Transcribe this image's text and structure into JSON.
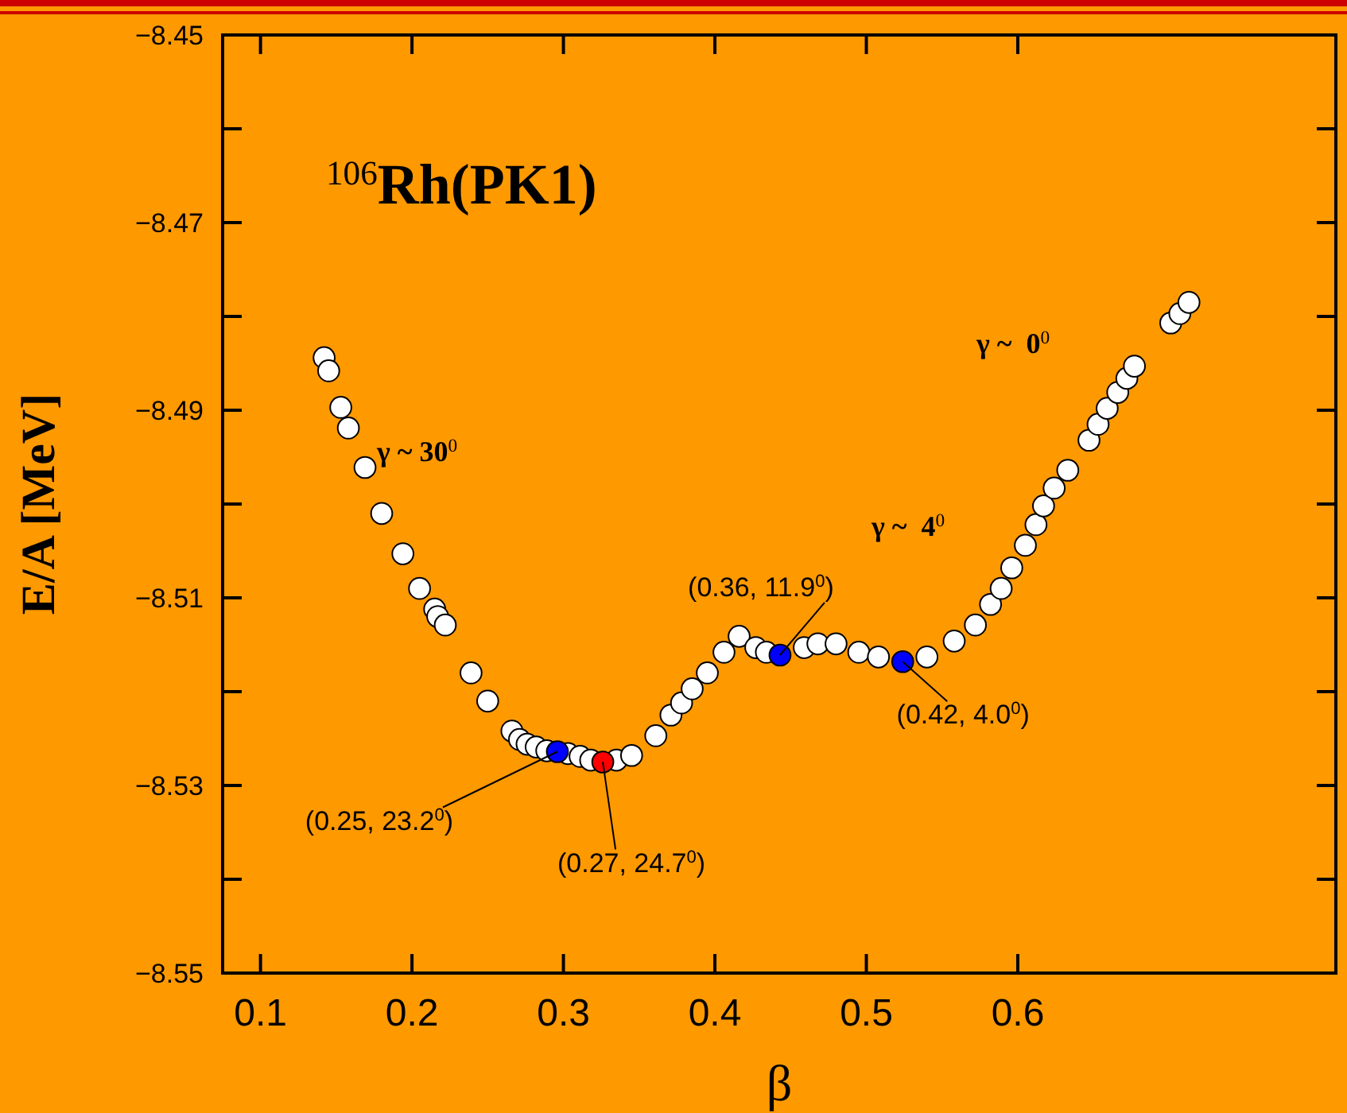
{
  "chart_data": {
    "type": "scatter",
    "title": "$^{106}$Rh(PK1)",
    "xlabel": "β",
    "ylabel": "E/A [MeV]",
    "xlim": [
      0.075,
      0.81
    ],
    "xticks": [
      0.1,
      0.2,
      0.3,
      0.4,
      0.5,
      0.6
    ],
    "ylim": [
      -8.55,
      -8.45
    ],
    "yticks": [
      {
        "value": -8.55,
        "label": "−8.55"
      },
      {
        "value": -8.54,
        "label": null
      },
      {
        "value": -8.53,
        "label": "−8.53"
      },
      {
        "value": -8.52,
        "label": null
      },
      {
        "value": -8.51,
        "label": "−8.51"
      },
      {
        "value": -8.5,
        "label": null
      },
      {
        "value": -8.49,
        "label": "−8.49"
      },
      {
        "value": -8.48,
        "label": null
      },
      {
        "value": -8.47,
        "label": "−8.47"
      },
      {
        "value": -8.46,
        "label": null
      },
      {
        "value": -8.45,
        "label": "−8.45"
      }
    ],
    "grid": false,
    "marker": "circle",
    "series": [
      {
        "color": "#ffffff",
        "x": [
          0.142,
          0.145,
          0.153,
          0.158,
          0.169,
          0.18,
          0.194,
          0.205,
          0.215,
          0.217,
          0.222,
          0.239,
          0.25,
          0.266,
          0.271,
          0.276,
          0.282,
          0.289,
          0.303,
          0.311,
          0.318,
          0.335,
          0.345,
          0.361,
          0.371,
          0.378,
          0.385,
          0.395,
          0.406,
          0.416,
          0.427,
          0.434,
          0.459,
          0.468,
          0.48,
          0.495,
          0.508,
          0.54,
          0.558,
          0.572,
          0.582,
          0.589,
          0.596,
          0.605,
          0.612,
          0.617,
          0.624,
          0.633,
          0.647,
          0.653,
          0.659,
          0.666,
          0.672,
          0.677,
          0.701,
          0.707,
          0.713
        ],
        "values": [
          -8.4844,
          -8.4858,
          -8.4897,
          -8.4919,
          -8.4961,
          -8.501,
          -8.5053,
          -8.509,
          -8.5112,
          -8.512,
          -8.5129,
          -8.518,
          -8.521,
          -8.5242,
          -8.5251,
          -8.5256,
          -8.5259,
          -8.5263,
          -8.5266,
          -8.5269,
          -8.5273,
          -8.5273,
          -8.5268,
          -8.5247,
          -8.5225,
          -8.5212,
          -8.5197,
          -8.518,
          -8.5158,
          -8.5141,
          -8.5153,
          -8.5158,
          -8.5153,
          -8.5149,
          -8.5149,
          -8.5158,
          -8.5163,
          -8.5163,
          -8.5146,
          -8.5129,
          -8.5107,
          -8.509,
          -8.5068,
          -8.5044,
          -8.5022,
          -8.5002,
          -8.4983,
          -8.4964,
          -8.4932,
          -8.4915,
          -8.4898,
          -8.4881,
          -8.4866,
          -8.4853,
          -8.4807,
          -8.4797,
          -8.4785
        ]
      },
      {
        "color": "#0000ff",
        "x": [
          0.296,
          0.443,
          0.524
        ],
        "values": [
          -8.5264,
          -8.5161,
          -8.5168
        ]
      },
      {
        "color": "#ff0000",
        "x": [
          0.326
        ],
        "values": [
          -8.5275
        ]
      }
    ],
    "annotations": [
      "γ ~ 30$^{0}$",
      "γ ~  4$^{0}$",
      "γ ~  0$^{0}$",
      {
        "text": "(0.25, 23.2$^{0}$)",
        "x": 0.296,
        "y": -8.5264
      },
      {
        "text": "(0.27, 24.7$^{0}$)",
        "x": 0.326,
        "y": -8.5275
      },
      {
        "text": "(0.36, 11.9$^{0}$)",
        "x": 0.443,
        "y": -8.5161
      },
      {
        "text": "(0.42, 4.0$^{0}$)",
        "x": 0.524,
        "y": -8.5168
      }
    ]
  }
}
